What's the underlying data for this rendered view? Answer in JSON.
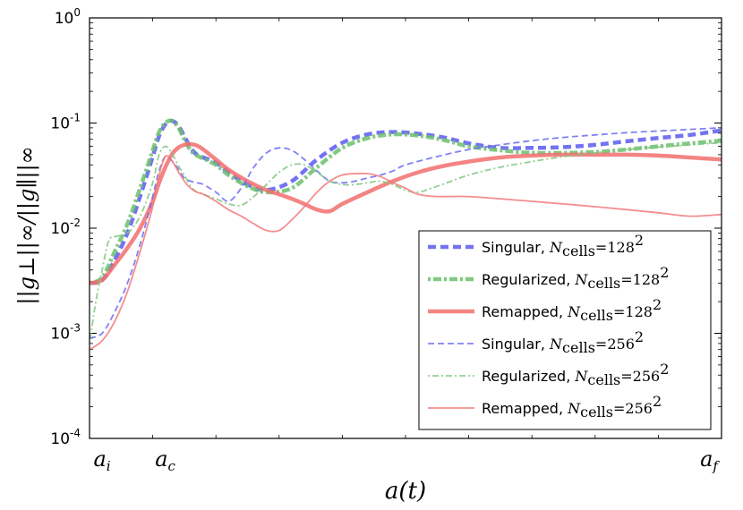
{
  "chart_data": {
    "type": "line",
    "yscale": "log",
    "ylim": [
      0.0001,
      1
    ],
    "xlim": [
      0,
      100
    ],
    "ylabel": "||g⊥||∞/||g∥||∞",
    "xlabel": "a(t)",
    "x_ticks": [
      {
        "x": 0,
        "label": "a",
        "sub": "i"
      },
      {
        "x": 10,
        "label": "a",
        "sub": "c"
      },
      {
        "x": 100,
        "label": "a",
        "sub": "f"
      }
    ],
    "y_ticks": [
      {
        "value": 0.0001,
        "base": "10",
        "exp": "-4"
      },
      {
        "value": 0.001,
        "base": "10",
        "exp": "-3"
      },
      {
        "value": 0.01,
        "base": "10",
        "exp": "-2"
      },
      {
        "value": 0.1,
        "base": "10",
        "exp": "-1"
      },
      {
        "value": 1,
        "base": "10",
        "exp": "0"
      }
    ],
    "series": [
      {
        "name": "Singular, N_cells=128^2",
        "label_main": "Singular, ",
        "label_exp": "2",
        "color": "#5b5bf0",
        "width": 4.5,
        "dash": "9,5",
        "x": [
          0,
          2,
          4,
          6,
          8,
          10,
          11,
          12,
          13,
          14,
          15,
          16,
          17,
          18,
          20,
          22,
          25,
          28,
          32,
          36,
          40,
          44,
          48,
          52,
          56,
          60,
          65,
          70,
          75,
          80,
          85,
          90,
          95,
          100
        ],
        "y": [
          0.003,
          0.0032,
          0.005,
          0.009,
          0.02,
          0.048,
          0.075,
          0.097,
          0.105,
          0.095,
          0.075,
          0.058,
          0.05,
          0.047,
          0.042,
          0.034,
          0.026,
          0.023,
          0.028,
          0.045,
          0.065,
          0.078,
          0.082,
          0.079,
          0.073,
          0.064,
          0.058,
          0.058,
          0.059,
          0.062,
          0.067,
          0.072,
          0.077,
          0.085
        ]
      },
      {
        "name": "Regularized, N_cells=128^2",
        "label_main": "Regularized, ",
        "label_exp": "2",
        "color": "#6cc06c",
        "width": 4.5,
        "dash": "3,3,9,3",
        "x": [
          0,
          2,
          4,
          6,
          8,
          10,
          11,
          12,
          13,
          14,
          15,
          16,
          17,
          18,
          20,
          22,
          25,
          28,
          32,
          36,
          40,
          44,
          48,
          52,
          56,
          60,
          65,
          70,
          75,
          80,
          85,
          90,
          95,
          100
        ],
        "y": [
          0.003,
          0.0034,
          0.006,
          0.011,
          0.024,
          0.055,
          0.082,
          0.1,
          0.105,
          0.092,
          0.07,
          0.055,
          0.049,
          0.046,
          0.04,
          0.032,
          0.025,
          0.022,
          0.024,
          0.038,
          0.058,
          0.072,
          0.078,
          0.076,
          0.069,
          0.06,
          0.055,
          0.052,
          0.052,
          0.053,
          0.056,
          0.06,
          0.064,
          0.068
        ]
      },
      {
        "name": "Remapped, N_cells=128^2",
        "label_main": "Remapped, ",
        "label_exp": "2",
        "color": "#f26e6e",
        "width": 4.5,
        "dash": "",
        "x": [
          0,
          2,
          4,
          6,
          8,
          10,
          11,
          12,
          13,
          14,
          15,
          16,
          17,
          18,
          20,
          22,
          25,
          28,
          30,
          32,
          34,
          36,
          38,
          40,
          44,
          48,
          52,
          56,
          60,
          65,
          70,
          75,
          80,
          85,
          90,
          95,
          100
        ],
        "y": [
          0.003,
          0.0032,
          0.0045,
          0.0065,
          0.01,
          0.018,
          0.027,
          0.038,
          0.05,
          0.058,
          0.062,
          0.063,
          0.061,
          0.056,
          0.045,
          0.036,
          0.028,
          0.023,
          0.021,
          0.019,
          0.017,
          0.015,
          0.0145,
          0.017,
          0.022,
          0.028,
          0.034,
          0.039,
          0.043,
          0.047,
          0.049,
          0.05,
          0.05,
          0.05,
          0.049,
          0.047,
          0.045
        ]
      },
      {
        "name": "Singular, N_cells=256^2",
        "label_main": "Singular, ",
        "label_exp": "2",
        "color": "#6b6bf5",
        "width": 1.8,
        "dash": "7,4",
        "x": [
          0,
          2,
          4,
          6,
          8,
          10,
          11,
          12,
          13,
          14,
          15,
          16,
          17,
          18,
          20,
          22,
          24,
          26,
          28,
          30,
          32,
          34,
          36,
          38,
          40,
          42,
          44,
          46,
          48,
          50,
          55,
          60,
          65,
          70,
          75,
          80,
          85,
          90,
          95,
          100
        ],
        "y": [
          0.0009,
          0.001,
          0.0016,
          0.003,
          0.007,
          0.02,
          0.035,
          0.048,
          0.044,
          0.037,
          0.03,
          0.028,
          0.027,
          0.026,
          0.022,
          0.018,
          0.024,
          0.038,
          0.052,
          0.058,
          0.055,
          0.045,
          0.035,
          0.028,
          0.027,
          0.028,
          0.03,
          0.032,
          0.035,
          0.04,
          0.048,
          0.056,
          0.062,
          0.068,
          0.073,
          0.077,
          0.081,
          0.084,
          0.087,
          0.09
        ]
      },
      {
        "name": "Regularized, N_cells=256^2",
        "label_main": "Regularized, ",
        "label_exp": "2",
        "color": "#7fc77f",
        "width": 1.8,
        "dash": "2,3,7,3",
        "x": [
          0,
          1,
          2,
          3,
          4,
          6,
          8,
          10,
          11,
          12,
          13,
          14,
          15,
          16,
          17,
          18,
          20,
          22,
          24,
          26,
          28,
          30,
          32,
          34,
          36,
          38,
          40,
          42,
          44,
          46,
          48,
          50,
          52,
          55,
          60,
          65,
          70,
          75,
          80,
          85,
          90,
          95,
          100
        ],
        "y": [
          0.0008,
          0.002,
          0.004,
          0.0075,
          0.0083,
          0.009,
          0.013,
          0.027,
          0.05,
          0.06,
          0.052,
          0.04,
          0.032,
          0.025,
          0.022,
          0.021,
          0.019,
          0.017,
          0.0165,
          0.02,
          0.026,
          0.034,
          0.04,
          0.04,
          0.034,
          0.028,
          0.026,
          0.026,
          0.027,
          0.028,
          0.026,
          0.023,
          0.022,
          0.025,
          0.032,
          0.038,
          0.043,
          0.048,
          0.052,
          0.056,
          0.059,
          0.062,
          0.065
        ]
      },
      {
        "name": "Remapped, N_cells=256^2",
        "label_main": "Remapped, ",
        "label_exp": "2",
        "color": "#f27a7a",
        "width": 1.8,
        "dash": "",
        "x": [
          0,
          2,
          4,
          6,
          8,
          10,
          11,
          12,
          13,
          14,
          15,
          16,
          17,
          18,
          20,
          22,
          24,
          26,
          28,
          30,
          32,
          34,
          36,
          38,
          40,
          42,
          44,
          46,
          48,
          50,
          52,
          55,
          60,
          65,
          70,
          75,
          80,
          85,
          90,
          95,
          100
        ],
        "y": [
          0.0007,
          0.00085,
          0.0013,
          0.0025,
          0.006,
          0.016,
          0.032,
          0.048,
          0.044,
          0.035,
          0.028,
          0.024,
          0.022,
          0.021,
          0.018,
          0.015,
          0.013,
          0.011,
          0.0095,
          0.0095,
          0.012,
          0.016,
          0.022,
          0.028,
          0.032,
          0.033,
          0.033,
          0.031,
          0.027,
          0.024,
          0.021,
          0.02,
          0.02,
          0.019,
          0.018,
          0.017,
          0.016,
          0.015,
          0.014,
          0.013,
          0.0135
        ]
      }
    ],
    "legend_symbol": "N",
    "legend_subscript": "cells",
    "legend_eq": "=128",
    "legend_eq_256": "=256",
    "legend_location": "lower-right"
  }
}
